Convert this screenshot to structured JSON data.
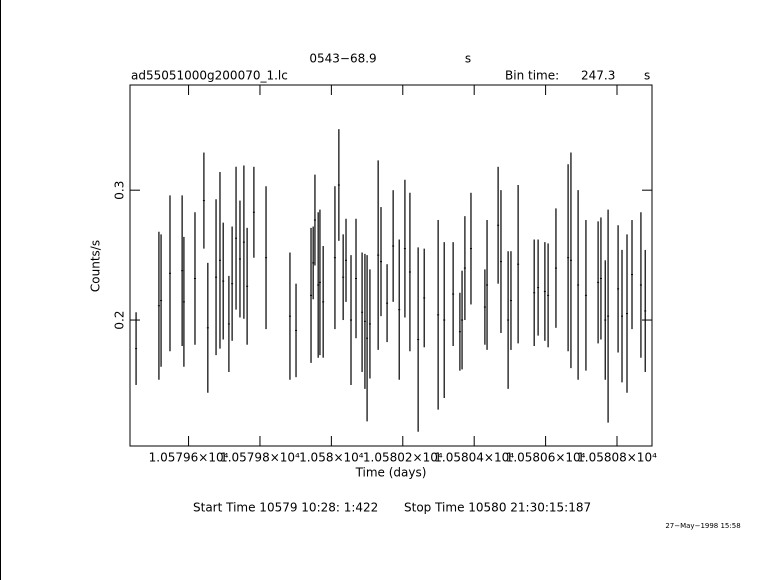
{
  "chart_data": {
    "type": "scatter",
    "title": "0543−68.9",
    "title_unit": "s",
    "source_file": "ad55051000g200070_1.lc",
    "bin_time_label": "Bin time:",
    "bin_time": 247.3,
    "bin_time_unit": "s",
    "x_label": "Time (days)",
    "y_label": "Counts/s",
    "start_time": "Start Time 10579 10:28: 1:422",
    "stop_time": "Stop Time 10580 21:30:15:187",
    "timestamp": "27−May−1998 15:58",
    "xlim": [
      10579.436,
      10580.898
    ],
    "ylim": [
      0.103,
      0.381
    ],
    "xticks": [
      {
        "value": 10579.6,
        "label": "1.05796×10⁴"
      },
      {
        "value": 10579.8,
        "label": "1.05798×10⁴"
      },
      {
        "value": 10580.0,
        "label": "1.058×10⁴"
      },
      {
        "value": 10580.2,
        "label": "1.05802×10⁴"
      },
      {
        "value": 10580.4,
        "label": "1.05804×10⁴"
      },
      {
        "value": 10580.6,
        "label": "1.05806×10⁴"
      },
      {
        "value": 10580.8,
        "label": "1.05808×10⁴"
      }
    ],
    "yticks": [
      0.2,
      0.3
    ],
    "color": "#000000",
    "series": [
      {
        "x": [
          10579.453,
          10579.517,
          10579.523,
          10579.548,
          10579.582,
          10579.587,
          10579.618,
          10579.643,
          10579.654,
          10579.677,
          10579.688,
          10579.697,
          10579.713,
          10579.722,
          10579.733,
          10579.744,
          10579.755,
          10579.764,
          10579.783,
          10579.817,
          10579.884,
          10579.901,
          10579.943,
          10579.949,
          10579.954,
          10579.963,
          10579.968,
          10579.977,
          10580.01,
          10580.021,
          10580.033,
          10580.041,
          10580.055,
          10580.069,
          10580.086,
          10580.094,
          10580.1,
          10580.108,
          10580.131,
          10580.139,
          10580.156,
          10580.173,
          10580.19,
          10580.206,
          10580.22,
          10580.243,
          10580.26,
          10580.299,
          10580.316,
          10580.341,
          10580.36,
          10580.366,
          10580.374,
          10580.391,
          10580.43,
          10580.436,
          10580.467,
          10580.475,
          10580.495,
          10580.503,
          10580.523,
          10580.568,
          10580.579,
          10580.598,
          10580.607,
          10580.629,
          10580.663,
          10580.671,
          10580.691,
          10580.713,
          10580.747,
          10580.755,
          10580.767,
          10580.775,
          10580.803,
          10580.814,
          10580.828,
          10580.842,
          10580.867,
          10580.879
        ],
        "values": [
          0.178,
          0.211,
          0.215,
          0.236,
          0.238,
          0.214,
          0.232,
          0.292,
          0.194,
          0.233,
          0.246,
          0.23,
          0.197,
          0.228,
          0.263,
          0.247,
          0.26,
          0.226,
          0.283,
          0.248,
          0.203,
          0.192,
          0.219,
          0.244,
          0.277,
          0.227,
          0.229,
          0.214,
          0.248,
          0.304,
          0.233,
          0.246,
          0.2,
          0.232,
          0.206,
          0.199,
          0.186,
          0.197,
          0.25,
          0.245,
          0.213,
          0.257,
          0.208,
          0.255,
          0.237,
          0.185,
          0.217,
          0.204,
          0.2,
          0.22,
          0.191,
          0.2,
          0.24,
          0.255,
          0.21,
          0.227,
          0.273,
          0.245,
          0.2,
          0.215,
          0.243,
          0.221,
          0.225,
          0.222,
          0.219,
          0.24,
          0.248,
          0.246,
          0.227,
          0.219,
          0.229,
          0.232,
          0.2,
          0.203,
          0.224,
          0.203,
          0.205,
          0.235,
          0.227,
          0.207
        ],
        "errors": [
          0.028,
          0.057,
          0.051,
          0.06,
          0.058,
          0.05,
          0.051,
          0.037,
          0.05,
          0.06,
          0.068,
          0.045,
          0.037,
          0.044,
          0.055,
          0.045,
          0.059,
          0.045,
          0.035,
          0.055,
          0.049,
          0.036,
          0.052,
          0.028,
          0.035,
          0.056,
          0.056,
          0.043,
          0.055,
          0.043,
          0.033,
          0.032,
          0.05,
          0.046,
          0.046,
          0.052,
          0.064,
          0.042,
          0.073,
          0.042,
          0.03,
          0.043,
          0.054,
          0.053,
          0.061,
          0.071,
          0.038,
          0.073,
          0.06,
          0.04,
          0.03,
          0.038,
          0.04,
          0.043,
          0.029,
          0.05,
          0.045,
          0.055,
          0.053,
          0.038,
          0.061,
          0.041,
          0.037,
          0.038,
          0.04,
          0.046,
          0.072,
          0.083,
          0.073,
          0.058,
          0.047,
          0.047,
          0.046,
          0.082,
          0.049,
          0.051,
          0.061,
          0.042,
          0.056,
          0.047
        ]
      }
    ]
  }
}
